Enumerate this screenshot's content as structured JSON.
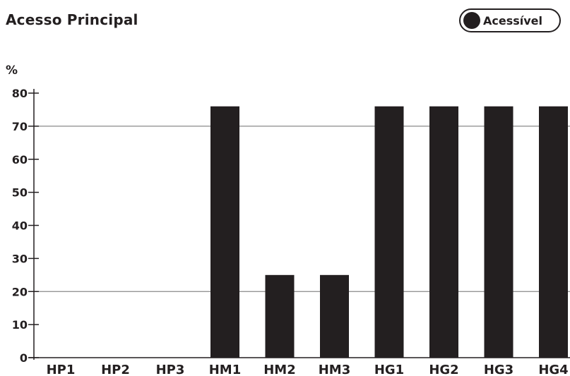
{
  "header": {
    "title": "Acesso Principal",
    "badge_label": "Acessível"
  },
  "colors": {
    "bar": "#231f20",
    "grid": "#8a8a8a",
    "axis": "#231f20"
  },
  "chart_data": {
    "type": "bar",
    "title": "",
    "xlabel": "",
    "ylabel": "%",
    "categories": [
      "HP1",
      "HP2",
      "HP3",
      "HM1",
      "HM2",
      "HM3",
      "HG1",
      "HG2",
      "HG3",
      "HG4"
    ],
    "values": [
      0,
      0,
      0,
      76,
      25,
      25,
      76,
      76,
      76,
      76
    ],
    "ylim": [
      0,
      80
    ],
    "yticks": [
      0,
      10,
      20,
      30,
      40,
      50,
      60,
      70,
      80
    ],
    "gridlines": [
      20,
      70
    ],
    "grid": true,
    "legend": "none"
  }
}
